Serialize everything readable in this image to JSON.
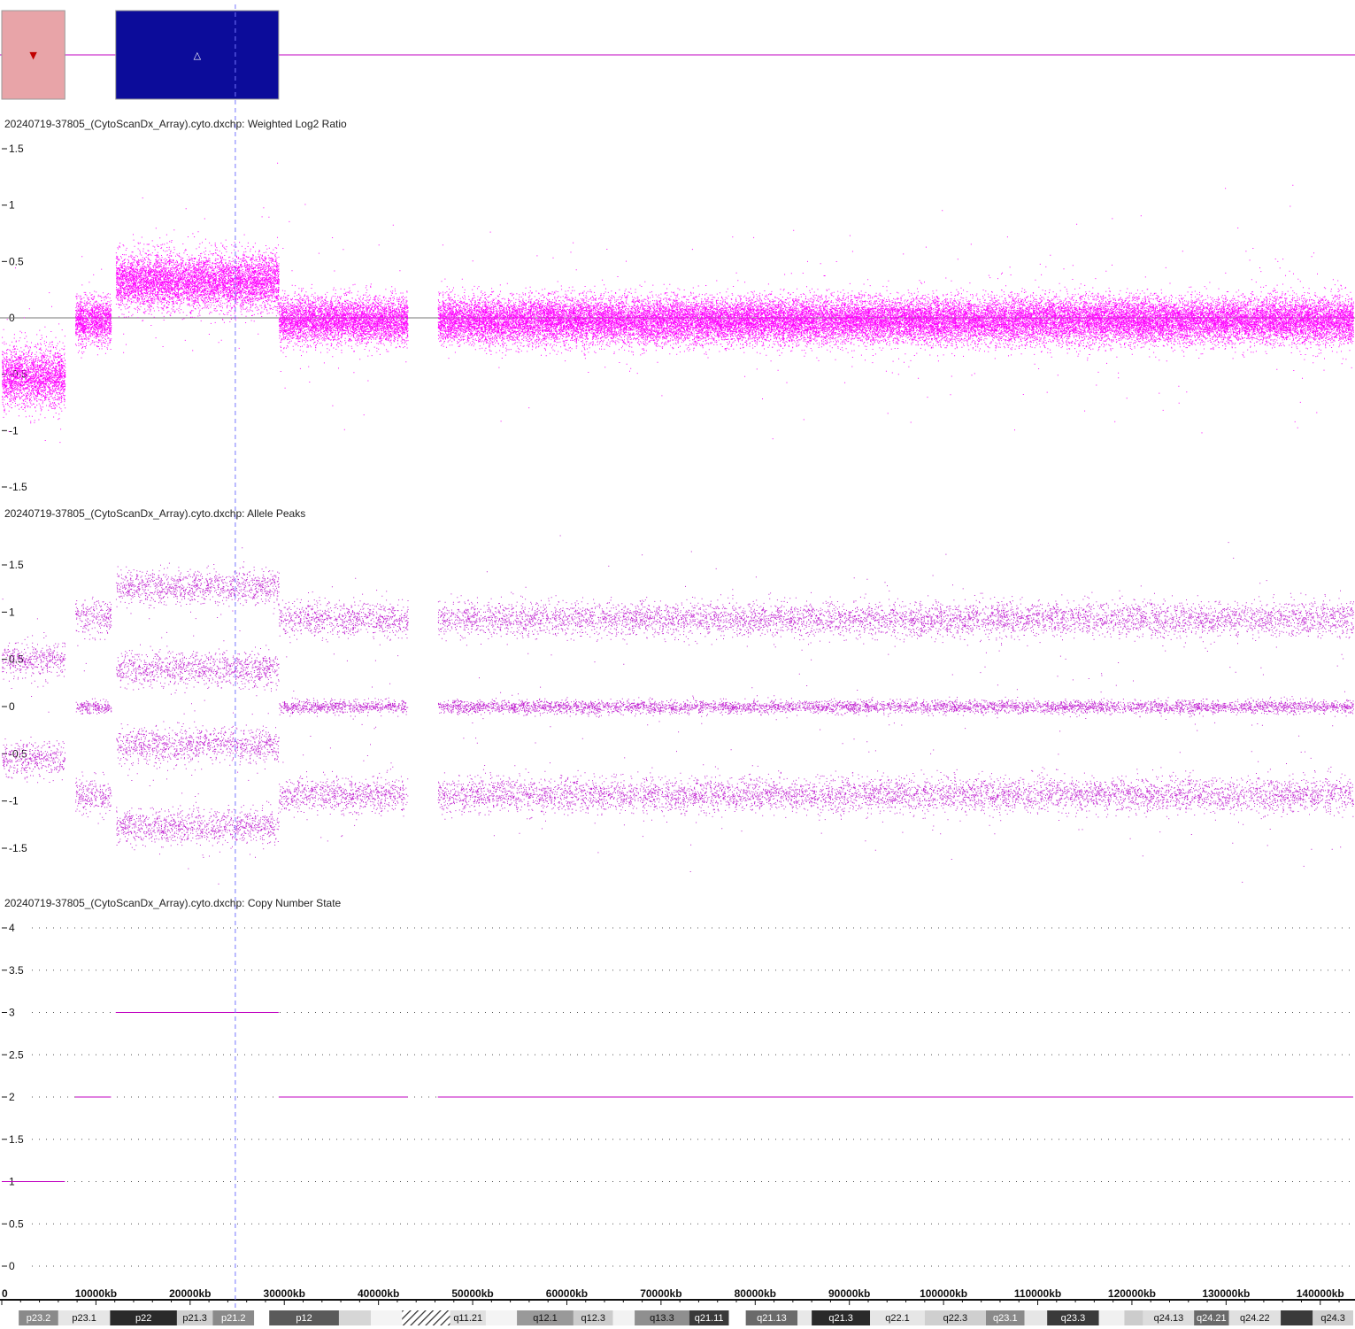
{
  "segments_track": {
    "segments": [
      {
        "start_kb": 0,
        "end_kb": 6700,
        "type": "loss",
        "color": "#e8a4a8",
        "marker": "▼",
        "marker_color": "#c00000"
      },
      {
        "start_kb": 12100,
        "end_kb": 29400,
        "type": "gain",
        "color": "#0c0c9a",
        "marker": "△",
        "marker_color": "#ffffff"
      }
    ],
    "baseline_color": "#c000c0"
  },
  "cursor_kb": 24800,
  "x_axis": {
    "min_kb": 0,
    "max_kb": 143500,
    "ticks": [
      {
        "v": 0,
        "label": "0"
      },
      {
        "v": 10000,
        "label": "10000kb"
      },
      {
        "v": 20000,
        "label": "20000kb"
      },
      {
        "v": 30000,
        "label": "30000kb"
      },
      {
        "v": 40000,
        "label": "40000kb"
      },
      {
        "v": 50000,
        "label": "50000kb"
      },
      {
        "v": 60000,
        "label": "60000kb"
      },
      {
        "v": 70000,
        "label": "70000kb"
      },
      {
        "v": 80000,
        "label": "80000kb"
      },
      {
        "v": 90000,
        "label": "90000kb"
      },
      {
        "v": 100000,
        "label": "100000kb"
      },
      {
        "v": 110000,
        "label": "110000kb"
      },
      {
        "v": 120000,
        "label": "120000kb"
      },
      {
        "v": 130000,
        "label": "130000kb"
      },
      {
        "v": 140000,
        "label": "140000kb"
      }
    ]
  },
  "chart_data": [
    {
      "type": "scatter",
      "title": "20240719-37805_(CytoScanDx_Array).cyto.dxchp: Weighted Log2 Ratio",
      "ylim": [
        -1.5,
        1.5
      ],
      "yticks": [
        1.5,
        1,
        0.5,
        0,
        -0.5,
        -1,
        -1.5
      ],
      "ytick_labels": [
        "1.5",
        "1",
        "0.5",
        "0",
        "-0.5",
        "-1",
        "-1.5"
      ],
      "zero_line": true,
      "color": "#ff00ff",
      "regions": [
        {
          "start_kb": 0,
          "end_kb": 6700,
          "mean": -0.52,
          "sd": 0.13
        },
        {
          "start_kb": 7800,
          "end_kb": 11600,
          "mean": -0.02,
          "sd": 0.1
        },
        {
          "start_kb": 12100,
          "end_kb": 29400,
          "mean": 0.33,
          "sd": 0.12
        },
        {
          "start_kb": 29400,
          "end_kb": 43100,
          "mean": -0.02,
          "sd": 0.1
        },
        {
          "start_kb": 46300,
          "end_kb": 143500,
          "mean": -0.02,
          "sd": 0.1
        }
      ]
    },
    {
      "type": "scatter",
      "title": "20240719-37805_(CytoScanDx_Array).cyto.dxchp: Allele Peaks",
      "ylim": [
        -1.75,
        1.75
      ],
      "yticks": [
        1.5,
        1,
        0.5,
        0,
        -0.5,
        -1,
        -1.5
      ],
      "ytick_labels": [
        "1.5",
        "1",
        "0.5",
        "0",
        "-0.5",
        "-1",
        "-1.5"
      ],
      "zero_line": false,
      "color": "#c020d0",
      "regions": [
        {
          "start_kb": 0,
          "end_kb": 6700,
          "bands": [
            0.5,
            -0.55
          ]
        },
        {
          "start_kb": 7800,
          "end_kb": 11600,
          "bands": [
            0.95,
            0,
            -0.95
          ]
        },
        {
          "start_kb": 12100,
          "end_kb": 29400,
          "bands": [
            1.27,
            0.4,
            -0.4,
            -1.27
          ]
        },
        {
          "start_kb": 29400,
          "end_kb": 43100,
          "bands": [
            0.93,
            0,
            -0.93
          ]
        },
        {
          "start_kb": 46300,
          "end_kb": 143500,
          "bands": [
            0.93,
            0,
            -0.93
          ]
        }
      ]
    },
    {
      "type": "line",
      "title": "20240719-37805_(CytoScanDx_Array).cyto.dxchp: Copy Number State",
      "ylim": [
        0,
        4
      ],
      "yticks": [
        4,
        3.5,
        3,
        2.5,
        2,
        1.5,
        1,
        0.5,
        0
      ],
      "ytick_labels": [
        "4",
        "3.5",
        "3",
        "2.5",
        "2",
        "1.5",
        "1",
        "0.5",
        "0"
      ],
      "grid": true,
      "color": "#c000c0",
      "segments": [
        {
          "start_kb": 0,
          "end_kb": 6700,
          "state": 1
        },
        {
          "start_kb": 7800,
          "end_kb": 11600,
          "state": 2
        },
        {
          "start_kb": 12100,
          "end_kb": 29400,
          "state": 3
        },
        {
          "start_kb": 29400,
          "end_kb": 43100,
          "state": 2
        },
        {
          "start_kb": 46300,
          "end_kb": 143500,
          "state": 2
        }
      ]
    }
  ],
  "ideogram": {
    "bands": [
      {
        "start_kb": 0,
        "end_kb": 1800,
        "stain": "#ffffff",
        "label": ""
      },
      {
        "start_kb": 1800,
        "end_kb": 6000,
        "stain": "#8a8a8a",
        "label": "p23.2"
      },
      {
        "start_kb": 6000,
        "end_kb": 11500,
        "stain": "#e6e6e6",
        "label": "p23.1"
      },
      {
        "start_kb": 11500,
        "end_kb": 18600,
        "stain": "#2a2a2a",
        "label": "p22"
      },
      {
        "start_kb": 18600,
        "end_kb": 22400,
        "stain": "#cfcfcf",
        "label": "p21.3"
      },
      {
        "start_kb": 22400,
        "end_kb": 26800,
        "stain": "#8a8a8a",
        "label": "p21.2"
      },
      {
        "start_kb": 26800,
        "end_kb": 28400,
        "stain": "#ffffff",
        "label": ""
      },
      {
        "start_kb": 28400,
        "end_kb": 35800,
        "stain": "#5a5a5a",
        "label": "p12"
      },
      {
        "start_kb": 35800,
        "end_kb": 39200,
        "stain": "#d6d6d6",
        "label": ""
      },
      {
        "start_kb": 39200,
        "end_kb": 42500,
        "stain": "#f4f4f4",
        "label": ""
      },
      {
        "start_kb": 42500,
        "end_kb": 47600,
        "stain": "hatch",
        "label": ""
      },
      {
        "start_kb": 47600,
        "end_kb": 51400,
        "stain": "#e0e0e0",
        "label": "q11.21"
      },
      {
        "start_kb": 51400,
        "end_kb": 54700,
        "stain": "#f4f4f4",
        "label": ""
      },
      {
        "start_kb": 54700,
        "end_kb": 60700,
        "stain": "#999999",
        "label": "q12.1"
      },
      {
        "start_kb": 60700,
        "end_kb": 64900,
        "stain": "#cccccc",
        "label": "q12.3"
      },
      {
        "start_kb": 64900,
        "end_kb": 67200,
        "stain": "#f2f2f2",
        "label": ""
      },
      {
        "start_kb": 67200,
        "end_kb": 73000,
        "stain": "#8f8f8f",
        "label": "q13.3"
      },
      {
        "start_kb": 73000,
        "end_kb": 77200,
        "stain": "#3a3a3a",
        "label": "q21.11"
      },
      {
        "start_kb": 77200,
        "end_kb": 79000,
        "stain": "#ffffff",
        "label": ""
      },
      {
        "start_kb": 79000,
        "end_kb": 84500,
        "stain": "#6a6a6a",
        "label": "q21.13"
      },
      {
        "start_kb": 84500,
        "end_kb": 86000,
        "stain": "#e8e8e8",
        "label": ""
      },
      {
        "start_kb": 86000,
        "end_kb": 92200,
        "stain": "#2a2a2a",
        "label": "q21.3"
      },
      {
        "start_kb": 92200,
        "end_kb": 98000,
        "stain": "#e6e6e6",
        "label": "q22.1"
      },
      {
        "start_kb": 98000,
        "end_kb": 104500,
        "stain": "#cfcfcf",
        "label": "q22.3"
      },
      {
        "start_kb": 104500,
        "end_kb": 108600,
        "stain": "#8a8a8a",
        "label": "q23.1"
      },
      {
        "start_kb": 108600,
        "end_kb": 111000,
        "stain": "#e6e6e6",
        "label": ""
      },
      {
        "start_kb": 111000,
        "end_kb": 116500,
        "stain": "#3a3a3a",
        "label": "q23.3"
      },
      {
        "start_kb": 116500,
        "end_kb": 119200,
        "stain": "#f0f0f0",
        "label": ""
      },
      {
        "start_kb": 119200,
        "end_kb": 121200,
        "stain": "#cccccc",
        "label": ""
      },
      {
        "start_kb": 121200,
        "end_kb": 126600,
        "stain": "#dddddd",
        "label": "q24.13"
      },
      {
        "start_kb": 126600,
        "end_kb": 130300,
        "stain": "#6a6a6a",
        "label": "q24.21"
      },
      {
        "start_kb": 130300,
        "end_kb": 135800,
        "stain": "#e0e0e0",
        "label": "q24.22"
      },
      {
        "start_kb": 135800,
        "end_kb": 139200,
        "stain": "#3a3a3a",
        "label": ""
      },
      {
        "start_kb": 139200,
        "end_kb": 143500,
        "stain": "#cfcfcf",
        "label": "q24.3"
      }
    ]
  }
}
